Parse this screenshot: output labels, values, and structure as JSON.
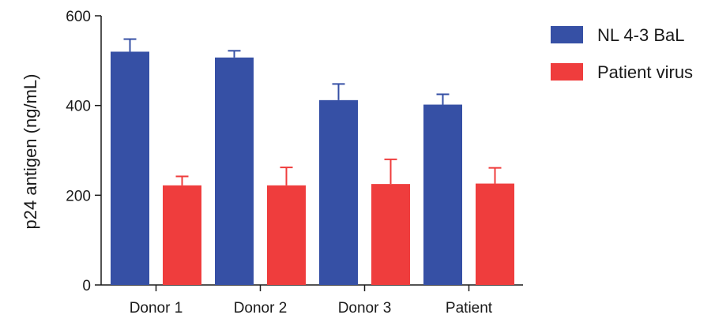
{
  "chart_data": {
    "type": "bar",
    "title": "",
    "xlabel": "",
    "ylabel": "p24 antigen (ng/mL)",
    "ylim": [
      0,
      600
    ],
    "yticks": [
      0,
      200,
      400,
      600
    ],
    "categories": [
      "Donor 1",
      "Donor 2",
      "Donor 3",
      "Patient"
    ],
    "series": [
      {
        "name": "NL 4-3 BaL",
        "color": "#3650a5",
        "values": [
          520,
          507,
          412,
          402
        ],
        "error_plus": [
          28,
          15,
          36,
          23
        ]
      },
      {
        "name": "Patient virus",
        "color": "#ef3d3d",
        "values": [
          222,
          222,
          225,
          226
        ],
        "error_plus": [
          20,
          40,
          55,
          35
        ]
      }
    ],
    "legend_position": "top-right",
    "grid": false
  }
}
